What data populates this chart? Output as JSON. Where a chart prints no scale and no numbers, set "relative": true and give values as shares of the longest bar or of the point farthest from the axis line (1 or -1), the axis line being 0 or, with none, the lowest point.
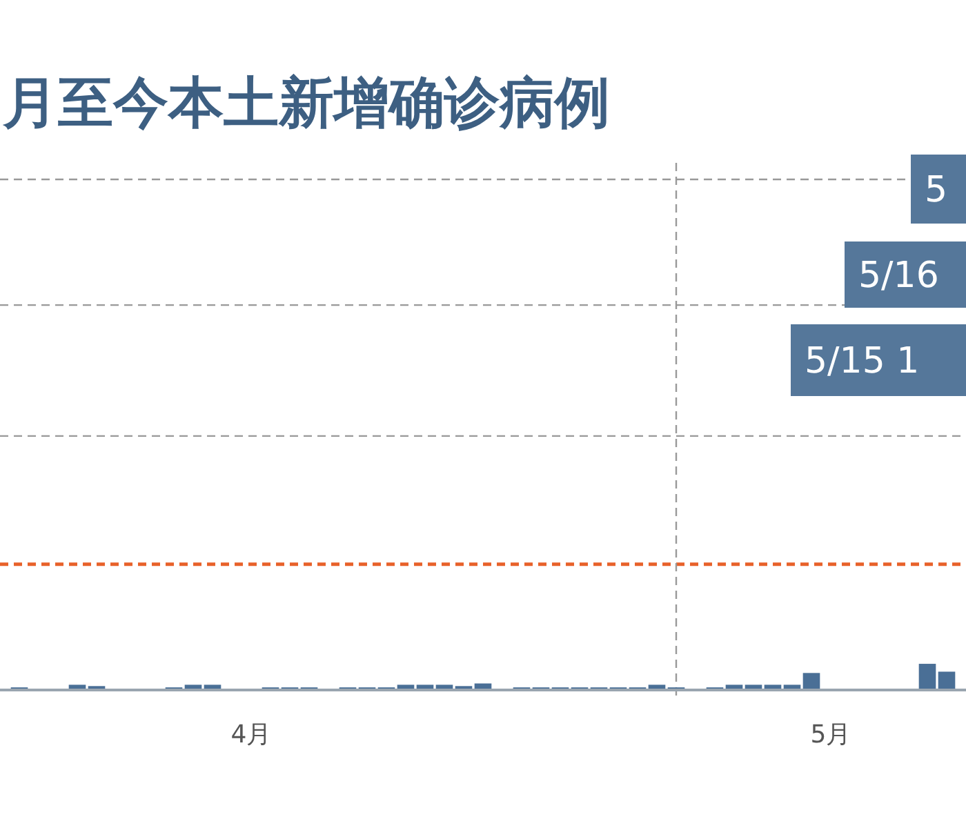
{
  "chart_data": {
    "type": "bar",
    "title": "月至今本土新增确诊病例",
    "relative": true,
    "color": "#4a6f96",
    "x": [
      "--03-20",
      "--03-21",
      "--03-22",
      "--03-23",
      "--03-24",
      "--03-25",
      "--03-26",
      "--03-27",
      "--03-28",
      "--03-29",
      "--03-30",
      "--03-31",
      "--04-01",
      "--04-02",
      "--04-03",
      "--04-04",
      "--04-05",
      "--04-06",
      "--04-07",
      "--04-08",
      "--04-09",
      "--04-10",
      "--04-11",
      "--04-12",
      "--04-13",
      "--04-14",
      "--04-15",
      "--04-16",
      "--04-17",
      "--04-18",
      "--04-19",
      "--04-20",
      "--04-21",
      "--04-22",
      "--04-23",
      "--04-24",
      "--04-25",
      "--04-26",
      "--04-27",
      "--04-28",
      "--04-29",
      "--04-30",
      "--05-01",
      "--05-02",
      "--05-03",
      "--05-04",
      "--05-05",
      "--05-06",
      "--05-07"
    ],
    "values": [
      0.1,
      0.05,
      0.05,
      0.2,
      0.15,
      0.05,
      0.05,
      0,
      0.1,
      0.2,
      0.2,
      0.05,
      0.05,
      0.1,
      0.1,
      0.1,
      0.05,
      0.1,
      0.1,
      0.1,
      0.2,
      0.2,
      0.2,
      0.15,
      0.25,
      0.05,
      0.1,
      0.1,
      0.1,
      0.1,
      0.1,
      0.1,
      0.1,
      0.2,
      0.1,
      0.05,
      0.1,
      0.2,
      0.2,
      0.2,
      0.2,
      0.65,
      0.05,
      0.05,
      0.05,
      0,
      0.05,
      1,
      0.7
    ],
    "xlim": [
      "--03-19",
      "--05-08"
    ],
    "xticks": [
      {
        "value": "--04-01",
        "label": "4月"
      },
      {
        "value": "--05-01",
        "label": "5月"
      }
    ],
    "ref_lines": [
      {
        "axis": "y",
        "value": 4.8,
        "color": "#e8622a",
        "line_style": "dashed"
      },
      {
        "axis": "y",
        "value": 9.7,
        "color": "#999999",
        "line_style": "dashed"
      },
      {
        "axis": "y",
        "value": 14.7,
        "color": "#999999",
        "line_style": "dashed"
      },
      {
        "axis": "y",
        "value": 19.5,
        "color": "#999999",
        "line_style": "dashed"
      },
      {
        "axis": "x",
        "value": "--04-23",
        "color": "#999999",
        "line_style": "dashed"
      }
    ],
    "annotations": [
      "5",
      "5/16",
      "5/15 1"
    ]
  }
}
